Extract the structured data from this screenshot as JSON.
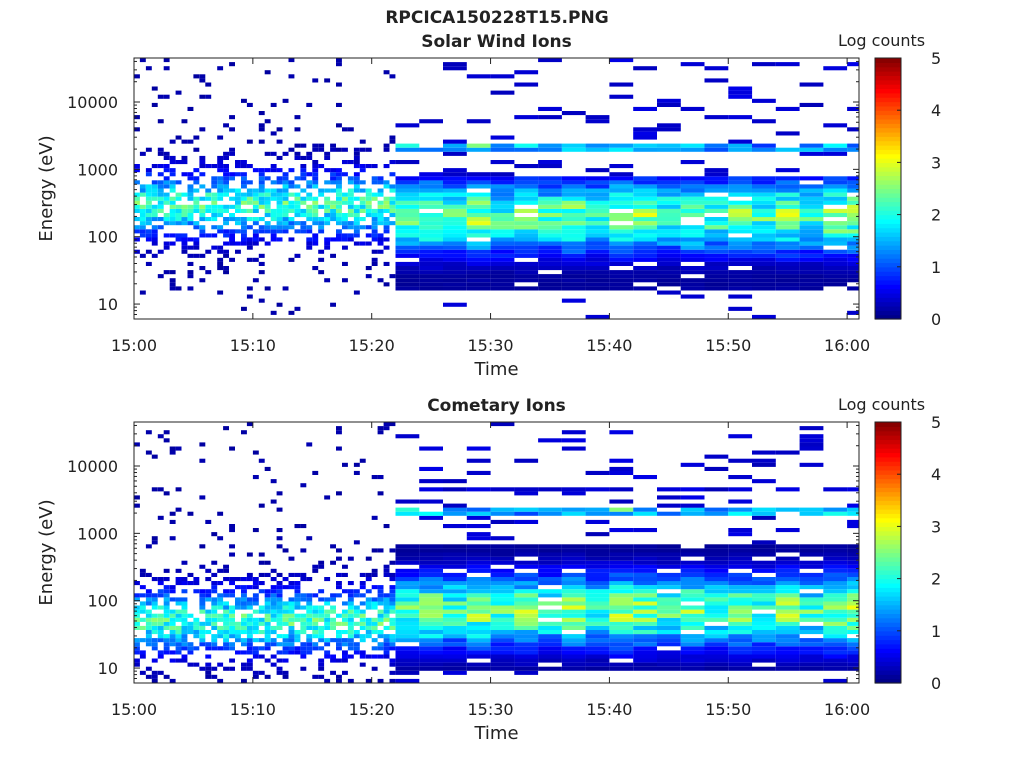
{
  "figure": {
    "title": "RPCICA150228T15.PNG"
  },
  "chart_data": [
    {
      "type": "heatmap",
      "title": "Solar Wind Ions",
      "xlabel": "Time",
      "ylabel": "Energy (eV)",
      "x_ticks": [
        "15:00",
        "15:10",
        "15:20",
        "15:30",
        "15:40",
        "15:50",
        "16:00"
      ],
      "xlim": [
        "15:00",
        "16:01"
      ],
      "y_scale": "log",
      "y_ticks": [
        10,
        100,
        1000,
        10000
      ],
      "y_tick_labels": [
        "10",
        "100",
        "1000",
        "10000"
      ],
      "ylim": [
        6,
        45000
      ],
      "colorbar": {
        "label": "Log counts",
        "range": [
          0,
          5
        ],
        "ticks": [
          "0",
          "1",
          "2",
          "3",
          "4",
          "5"
        ],
        "colormap": "jet"
      },
      "profile": {
        "description_free": true,
        "early_sparse_until": "15:22",
        "peak_energy_early": 300,
        "peak_energy_late": 200,
        "late_band_low": 15,
        "late_band_high": 800,
        "high_energy_line": 2200,
        "max_log_counts": 2.4
      }
    },
    {
      "type": "heatmap",
      "title": "Cometary Ions",
      "xlabel": "Time",
      "ylabel": "Energy (eV)",
      "x_ticks": [
        "15:00",
        "15:10",
        "15:20",
        "15:30",
        "15:40",
        "15:50",
        "16:00"
      ],
      "xlim": [
        "15:00",
        "16:01"
      ],
      "y_scale": "log",
      "y_ticks": [
        10,
        100,
        1000,
        10000
      ],
      "y_tick_labels": [
        "10",
        "100",
        "1000",
        "10000"
      ],
      "ylim": [
        6,
        45000
      ],
      "colorbar": {
        "label": "Log counts",
        "range": [
          0,
          5
        ],
        "ticks": [
          "0",
          "1",
          "2",
          "3",
          "4",
          "5"
        ],
        "colormap": "jet"
      },
      "profile": {
        "early_sparse_until": "15:22",
        "peak_energy_early": 50,
        "peak_energy_late": 70,
        "late_band_low": 9,
        "late_band_high": 650,
        "high_energy_line": 2200,
        "max_log_counts": 2.4
      }
    }
  ]
}
